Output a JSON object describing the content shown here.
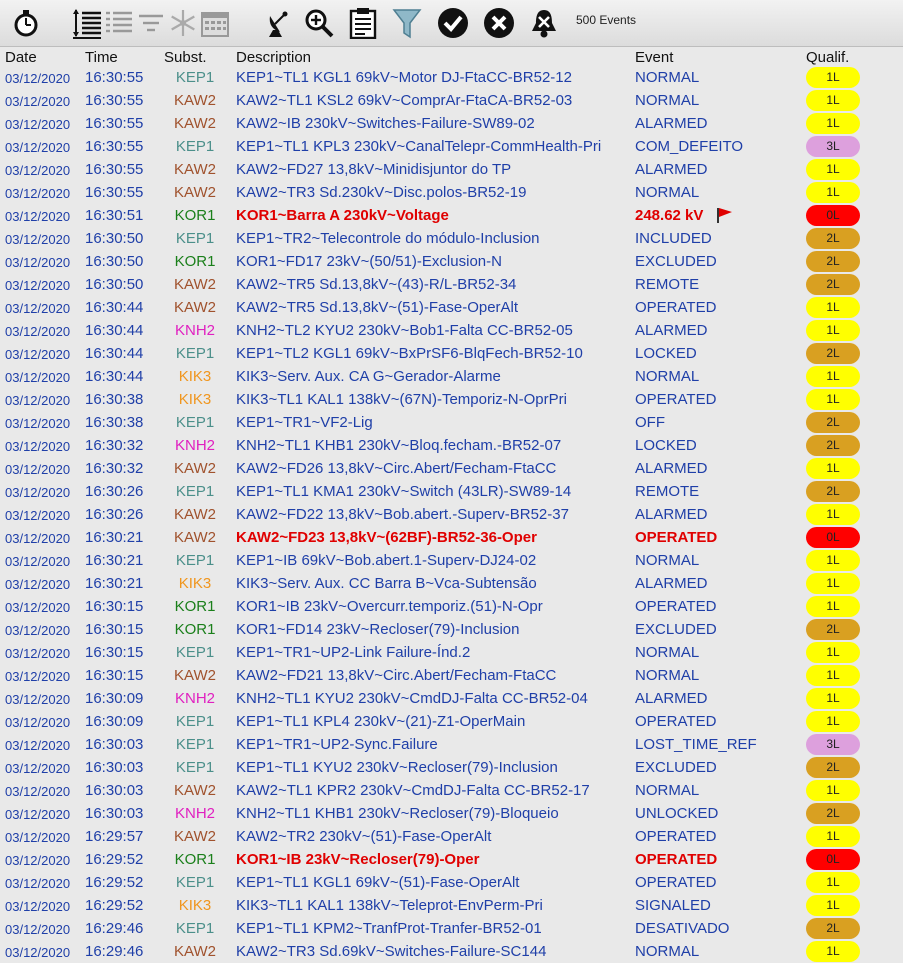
{
  "toolbar": {
    "icons": [
      "stopwatch-icon",
      "sort-lines-icon",
      "list-lines-icon",
      "filter-lines-icon",
      "snowflake-icon",
      "calendar-icon",
      "satellite-dish-icon",
      "zoom-icon",
      "clipboard-icon",
      "funnel-icon",
      "check-circle-icon",
      "x-circle-icon",
      "bell-mute-icon"
    ],
    "events_count": "500 Events"
  },
  "header": {
    "date": "Date",
    "time": "Time",
    "subst": "Subst.",
    "desc": "Description",
    "event": "Event",
    "qual": "Qualif."
  },
  "colors": {
    "KEP1": "#4b8f8a",
    "KAW2": "#a0522d",
    "KOR1": "#1a7f1a",
    "KNH2": "#e020c0",
    "KIK3": "#f0961e",
    "q1L": "#ffff00",
    "q2L": "#d9a021",
    "q3L": "#dda0dd",
    "q0L": "#ff0000"
  },
  "rows": [
    {
      "date": "03/12/2020",
      "time": "16:30:55",
      "sub": "KEP1",
      "desc": "KEP1~TL1 KGL1 69kV~Motor DJ-FtaCC-BR52-12",
      "event": "NORMAL",
      "qual": "1L"
    },
    {
      "date": "03/12/2020",
      "time": "16:30:55",
      "sub": "KAW2",
      "desc": "KAW2~TL1 KSL2 69kV~ComprAr-FtaCA-BR52-03",
      "event": "NORMAL",
      "qual": "1L"
    },
    {
      "date": "03/12/2020",
      "time": "16:30:55",
      "sub": "KAW2",
      "desc": "KAW2~IB 230kV~Switches-Failure-SW89-02",
      "event": "ALARMED",
      "qual": "1L"
    },
    {
      "date": "03/12/2020",
      "time": "16:30:55",
      "sub": "KEP1",
      "desc": "KEP1~TL1 KPL3 230kV~CanalTelepr-CommHealth-Pri",
      "event": "COM_DEFEITO",
      "qual": "3L"
    },
    {
      "date": "03/12/2020",
      "time": "16:30:55",
      "sub": "KAW2",
      "desc": "KAW2~FD27 13,8kV~Minidisjuntor do TP",
      "event": "ALARMED",
      "qual": "1L"
    },
    {
      "date": "03/12/2020",
      "time": "16:30:55",
      "sub": "KAW2",
      "desc": "KAW2~TR3 Sd.230kV~Disc.polos-BR52-19",
      "event": "NORMAL",
      "qual": "1L"
    },
    {
      "date": "03/12/2020",
      "time": "16:30:51",
      "sub": "KOR1",
      "desc": "KOR1~Barra A 230kV~Voltage",
      "event": "248.62 kV",
      "qual": "0L",
      "alarm": true,
      "flag": true
    },
    {
      "date": "03/12/2020",
      "time": "16:30:50",
      "sub": "KEP1",
      "desc": "KEP1~TR2~Telecontrole do módulo-Inclusion",
      "event": "INCLUDED",
      "qual": "2L"
    },
    {
      "date": "03/12/2020",
      "time": "16:30:50",
      "sub": "KOR1",
      "desc": "KOR1~FD17 23kV~(50/51)-Exclusion-N",
      "event": "EXCLUDED",
      "qual": "2L"
    },
    {
      "date": "03/12/2020",
      "time": "16:30:50",
      "sub": "KAW2",
      "desc": "KAW2~TR5 Sd.13,8kV~(43)-R/L-BR52-34",
      "event": "REMOTE",
      "qual": "2L"
    },
    {
      "date": "03/12/2020",
      "time": "16:30:44",
      "sub": "KAW2",
      "desc": "KAW2~TR5 Sd.13,8kV~(51)-Fase-OperAlt",
      "event": "OPERATED",
      "qual": "1L"
    },
    {
      "date": "03/12/2020",
      "time": "16:30:44",
      "sub": "KNH2",
      "desc": "KNH2~TL2 KYU2 230kV~Bob1-Falta CC-BR52-05",
      "event": "ALARMED",
      "qual": "1L"
    },
    {
      "date": "03/12/2020",
      "time": "16:30:44",
      "sub": "KEP1",
      "desc": "KEP1~TL2 KGL1 69kV~BxPrSF6-BlqFech-BR52-10",
      "event": "LOCKED",
      "qual": "2L"
    },
    {
      "date": "03/12/2020",
      "time": "16:30:44",
      "sub": "KIK3",
      "desc": "KIK3~Serv. Aux. CA G~Gerador-Alarme",
      "event": "NORMAL",
      "qual": "1L"
    },
    {
      "date": "03/12/2020",
      "time": "16:30:38",
      "sub": "KIK3",
      "desc": "KIK3~TL1 KAL1 138kV~(67N)-Temporiz-N-OprPri",
      "event": "OPERATED",
      "qual": "1L"
    },
    {
      "date": "03/12/2020",
      "time": "16:30:38",
      "sub": "KEP1",
      "desc": "KEP1~TR1~VF2-Lig",
      "event": "OFF",
      "qual": "2L"
    },
    {
      "date": "03/12/2020",
      "time": "16:30:32",
      "sub": "KNH2",
      "desc": "KNH2~TL1 KHB1 230kV~Bloq.fecham.-BR52-07",
      "event": "LOCKED",
      "qual": "2L"
    },
    {
      "date": "03/12/2020",
      "time": "16:30:32",
      "sub": "KAW2",
      "desc": "KAW2~FD26 13,8kV~Circ.Abert/Fecham-FtaCC",
      "event": "ALARMED",
      "qual": "1L"
    },
    {
      "date": "03/12/2020",
      "time": "16:30:26",
      "sub": "KEP1",
      "desc": "KEP1~TL1 KMA1 230kV~Switch (43LR)-SW89-14",
      "event": "REMOTE",
      "qual": "2L"
    },
    {
      "date": "03/12/2020",
      "time": "16:30:26",
      "sub": "KAW2",
      "desc": "KAW2~FD22 13,8kV~Bob.abert.-Superv-BR52-37",
      "event": "ALARMED",
      "qual": "1L"
    },
    {
      "date": "03/12/2020",
      "time": "16:30:21",
      "sub": "KAW2",
      "desc": "KAW2~FD23 13,8kV~(62BF)-BR52-36-Oper",
      "event": "OPERATED",
      "qual": "0L",
      "alarm": true
    },
    {
      "date": "03/12/2020",
      "time": "16:30:21",
      "sub": "KEP1",
      "desc": "KEP1~IB 69kV~Bob.abert.1-Superv-DJ24-02",
      "event": "NORMAL",
      "qual": "1L"
    },
    {
      "date": "03/12/2020",
      "time": "16:30:21",
      "sub": "KIK3",
      "desc": "KIK3~Serv. Aux. CC Barra B~Vca-Subtensão",
      "event": "ALARMED",
      "qual": "1L"
    },
    {
      "date": "03/12/2020",
      "time": "16:30:15",
      "sub": "KOR1",
      "desc": "KOR1~IB 23kV~Overcurr.temporiz.(51)-N-Opr",
      "event": "OPERATED",
      "qual": "1L"
    },
    {
      "date": "03/12/2020",
      "time": "16:30:15",
      "sub": "KOR1",
      "desc": "KOR1~FD14 23kV~Recloser(79)-Inclusion",
      "event": "EXCLUDED",
      "qual": "2L"
    },
    {
      "date": "03/12/2020",
      "time": "16:30:15",
      "sub": "KEP1",
      "desc": "KEP1~TR1~UP2-Link Failure-Índ.2",
      "event": "NORMAL",
      "qual": "1L"
    },
    {
      "date": "03/12/2020",
      "time": "16:30:15",
      "sub": "KAW2",
      "desc": "KAW2~FD21 13,8kV~Circ.Abert/Fecham-FtaCC",
      "event": "NORMAL",
      "qual": "1L"
    },
    {
      "date": "03/12/2020",
      "time": "16:30:09",
      "sub": "KNH2",
      "desc": "KNH2~TL1 KYU2 230kV~CmdDJ-Falta CC-BR52-04",
      "event": "ALARMED",
      "qual": "1L"
    },
    {
      "date": "03/12/2020",
      "time": "16:30:09",
      "sub": "KEP1",
      "desc": "KEP1~TL1 KPL4 230kV~(21)-Z1-OperMain",
      "event": "OPERATED",
      "qual": "1L"
    },
    {
      "date": "03/12/2020",
      "time": "16:30:03",
      "sub": "KEP1",
      "desc": "KEP1~TR1~UP2-Sync.Failure",
      "event": "LOST_TIME_REF",
      "qual": "3L"
    },
    {
      "date": "03/12/2020",
      "time": "16:30:03",
      "sub": "KEP1",
      "desc": "KEP1~TL1 KYU2 230kV~Recloser(79)-Inclusion",
      "event": "EXCLUDED",
      "qual": "2L"
    },
    {
      "date": "03/12/2020",
      "time": "16:30:03",
      "sub": "KAW2",
      "desc": "KAW2~TL1 KPR2 230kV~CmdDJ-Falta CC-BR52-17",
      "event": "NORMAL",
      "qual": "1L"
    },
    {
      "date": "03/12/2020",
      "time": "16:30:03",
      "sub": "KNH2",
      "desc": "KNH2~TL1 KHB1 230kV~Recloser(79)-Bloqueio",
      "event": "UNLOCKED",
      "qual": "2L"
    },
    {
      "date": "03/12/2020",
      "time": "16:29:57",
      "sub": "KAW2",
      "desc": "KAW2~TR2 230kV~(51)-Fase-OperAlt",
      "event": "OPERATED",
      "qual": "1L"
    },
    {
      "date": "03/12/2020",
      "time": "16:29:52",
      "sub": "KOR1",
      "desc": "KOR1~IB 23kV~Recloser(79)-Oper",
      "event": "OPERATED",
      "qual": "0L",
      "alarm": true
    },
    {
      "date": "03/12/2020",
      "time": "16:29:52",
      "sub": "KEP1",
      "desc": "KEP1~TL1 KGL1 69kV~(51)-Fase-OperAlt",
      "event": "OPERATED",
      "qual": "1L"
    },
    {
      "date": "03/12/2020",
      "time": "16:29:52",
      "sub": "KIK3",
      "desc": "KIK3~TL1 KAL1 138kV~Teleprot-EnvPerm-Pri",
      "event": "SIGNALED",
      "qual": "1L"
    },
    {
      "date": "03/12/2020",
      "time": "16:29:46",
      "sub": "KEP1",
      "desc": "KEP1~TL1 KPM2~TranfProt-Tranfer-BR52-01",
      "event": "DESATIVADO",
      "qual": "2L"
    },
    {
      "date": "03/12/2020",
      "time": "16:29:46",
      "sub": "KAW2",
      "desc": "KAW2~TR3 Sd.69kV~Switches-Failure-SC144",
      "event": "NORMAL",
      "qual": "1L"
    }
  ]
}
